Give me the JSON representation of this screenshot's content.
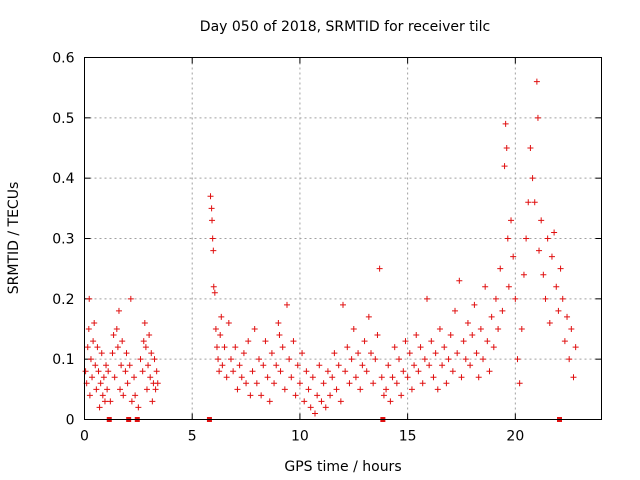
{
  "chart_data": {
    "type": "scatter",
    "title": "Day 050 of 2018, SRMTID for receiver tilc",
    "xlabel": "GPS time / hours",
    "ylabel": "SRMTID / TECUs",
    "xlim": [
      0,
      24
    ],
    "ylim": [
      0,
      0.6
    ],
    "xticks": [
      0,
      5,
      10,
      15,
      20
    ],
    "xtick_labels": [
      "0",
      "5",
      "10",
      "15",
      "20"
    ],
    "yticks": [
      0,
      0.1,
      0.2,
      0.3,
      0.4,
      0.5,
      0.6
    ],
    "ytick_labels": [
      "0",
      "0.1",
      "0.2",
      "0.3",
      "0.4",
      "0.5",
      "0.6"
    ],
    "grid": true,
    "marker": "plus",
    "color": "#e01010",
    "zero_markers_x": [
      1.15,
      2.05,
      2.45,
      5.8,
      13.85,
      22.05
    ],
    "series": [
      {
        "name": "SRMTID",
        "points": [
          [
            0.05,
            0.08
          ],
          [
            0.1,
            0.06
          ],
          [
            0.15,
            0.12
          ],
          [
            0.2,
            0.15
          ],
          [
            0.22,
            0.2
          ],
          [
            0.25,
            0.04
          ],
          [
            0.3,
            0.1
          ],
          [
            0.35,
            0.07
          ],
          [
            0.4,
            0.13
          ],
          [
            0.45,
            0.16
          ],
          [
            0.5,
            0.09
          ],
          [
            0.55,
            0.05
          ],
          [
            0.6,
            0.12
          ],
          [
            0.65,
            0.08
          ],
          [
            0.7,
            0.02
          ],
          [
            0.75,
            0.06
          ],
          [
            0.8,
            0.11
          ],
          [
            0.85,
            0.04
          ],
          [
            0.9,
            0.07
          ],
          [
            0.95,
            0.03
          ],
          [
            1.0,
            0.09
          ],
          [
            1.05,
            0.05
          ],
          [
            1.1,
            0.08
          ],
          [
            1.2,
            0.03
          ],
          [
            1.3,
            0.11
          ],
          [
            1.35,
            0.14
          ],
          [
            1.4,
            0.07
          ],
          [
            1.5,
            0.15
          ],
          [
            1.55,
            0.12
          ],
          [
            1.6,
            0.18
          ],
          [
            1.65,
            0.05
          ],
          [
            1.7,
            0.09
          ],
          [
            1.75,
            0.13
          ],
          [
            1.8,
            0.04
          ],
          [
            1.9,
            0.08
          ],
          [
            1.95,
            0.11
          ],
          [
            2.0,
            0.06
          ],
          [
            2.1,
            0.09
          ],
          [
            2.15,
            0.2
          ],
          [
            2.2,
            0.03
          ],
          [
            2.3,
            0.07
          ],
          [
            2.35,
            0.04
          ],
          [
            2.5,
            0.02
          ],
          [
            2.6,
            0.1
          ],
          [
            2.7,
            0.08
          ],
          [
            2.75,
            0.13
          ],
          [
            2.8,
            0.16
          ],
          [
            2.85,
            0.12
          ],
          [
            2.9,
            0.05
          ],
          [
            2.95,
            0.09
          ],
          [
            3.0,
            0.14
          ],
          [
            3.05,
            0.07
          ],
          [
            3.1,
            0.11
          ],
          [
            3.15,
            0.03
          ],
          [
            3.2,
            0.06
          ],
          [
            3.25,
            0.1
          ],
          [
            3.3,
            0.05
          ],
          [
            3.35,
            0.08
          ],
          [
            3.4,
            0.06
          ],
          [
            5.85,
            0.37
          ],
          [
            5.9,
            0.35
          ],
          [
            5.92,
            0.33
          ],
          [
            5.95,
            0.3
          ],
          [
            5.98,
            0.28
          ],
          [
            6.0,
            0.22
          ],
          [
            6.05,
            0.21
          ],
          [
            6.1,
            0.15
          ],
          [
            6.15,
            0.12
          ],
          [
            6.2,
            0.1
          ],
          [
            6.25,
            0.08
          ],
          [
            6.3,
            0.14
          ],
          [
            6.35,
            0.17
          ],
          [
            6.4,
            0.09
          ],
          [
            6.5,
            0.12
          ],
          [
            6.6,
            0.07
          ],
          [
            6.7,
            0.16
          ],
          [
            6.8,
            0.1
          ],
          [
            6.9,
            0.08
          ],
          [
            7.0,
            0.12
          ],
          [
            7.1,
            0.05
          ],
          [
            7.2,
            0.09
          ],
          [
            7.3,
            0.07
          ],
          [
            7.4,
            0.11
          ],
          [
            7.5,
            0.06
          ],
          [
            7.6,
            0.13
          ],
          [
            7.7,
            0.04
          ],
          [
            7.8,
            0.08
          ],
          [
            7.9,
            0.15
          ],
          [
            8.0,
            0.06
          ],
          [
            8.1,
            0.1
          ],
          [
            8.2,
            0.04
          ],
          [
            8.3,
            0.09
          ],
          [
            8.4,
            0.13
          ],
          [
            8.5,
            0.07
          ],
          [
            8.6,
            0.03
          ],
          [
            8.7,
            0.11
          ],
          [
            8.8,
            0.06
          ],
          [
            8.9,
            0.09
          ],
          [
            9.0,
            0.16
          ],
          [
            9.05,
            0.14
          ],
          [
            9.1,
            0.08
          ],
          [
            9.2,
            0.12
          ],
          [
            9.3,
            0.05
          ],
          [
            9.4,
            0.19
          ],
          [
            9.5,
            0.1
          ],
          [
            9.6,
            0.07
          ],
          [
            9.7,
            0.13
          ],
          [
            9.8,
            0.04
          ],
          [
            9.9,
            0.09
          ],
          [
            10.0,
            0.06
          ],
          [
            10.1,
            0.11
          ],
          [
            10.2,
            0.03
          ],
          [
            10.3,
            0.08
          ],
          [
            10.4,
            0.05
          ],
          [
            10.5,
            0.02
          ],
          [
            10.6,
            0.07
          ],
          [
            10.7,
            0.01
          ],
          [
            10.8,
            0.04
          ],
          [
            10.9,
            0.09
          ],
          [
            11.0,
            0.03
          ],
          [
            11.1,
            0.06
          ],
          [
            11.2,
            0.02
          ],
          [
            11.3,
            0.08
          ],
          [
            11.4,
            0.04
          ],
          [
            11.5,
            0.07
          ],
          [
            11.6,
            0.11
          ],
          [
            11.7,
            0.05
          ],
          [
            11.8,
            0.09
          ],
          [
            11.9,
            0.03
          ],
          [
            12.0,
            0.19
          ],
          [
            12.1,
            0.08
          ],
          [
            12.2,
            0.12
          ],
          [
            12.3,
            0.06
          ],
          [
            12.4,
            0.1
          ],
          [
            12.5,
            0.15
          ],
          [
            12.6,
            0.07
          ],
          [
            12.7,
            0.11
          ],
          [
            12.8,
            0.05
          ],
          [
            12.9,
            0.09
          ],
          [
            13.0,
            0.13
          ],
          [
            13.1,
            0.08
          ],
          [
            13.2,
            0.17
          ],
          [
            13.3,
            0.11
          ],
          [
            13.4,
            0.06
          ],
          [
            13.5,
            0.1
          ],
          [
            13.6,
            0.14
          ],
          [
            13.7,
            0.25
          ],
          [
            13.8,
            0.07
          ],
          [
            13.9,
            0.04
          ],
          [
            14.0,
            0.05
          ],
          [
            14.1,
            0.09
          ],
          [
            14.2,
            0.03
          ],
          [
            14.3,
            0.07
          ],
          [
            14.4,
            0.12
          ],
          [
            14.5,
            0.06
          ],
          [
            14.6,
            0.1
          ],
          [
            14.7,
            0.04
          ],
          [
            14.8,
            0.08
          ],
          [
            14.9,
            0.13
          ],
          [
            15.0,
            0.07
          ],
          [
            15.1,
            0.11
          ],
          [
            15.2,
            0.05
          ],
          [
            15.3,
            0.09
          ],
          [
            15.4,
            0.14
          ],
          [
            15.5,
            0.08
          ],
          [
            15.6,
            0.12
          ],
          [
            15.7,
            0.06
          ],
          [
            15.8,
            0.1
          ],
          [
            15.9,
            0.2
          ],
          [
            16.0,
            0.09
          ],
          [
            16.1,
            0.13
          ],
          [
            16.2,
            0.07
          ],
          [
            16.3,
            0.11
          ],
          [
            16.4,
            0.05
          ],
          [
            16.5,
            0.15
          ],
          [
            16.6,
            0.09
          ],
          [
            16.7,
            0.12
          ],
          [
            16.8,
            0.06
          ],
          [
            16.9,
            0.1
          ],
          [
            17.0,
            0.14
          ],
          [
            17.1,
            0.08
          ],
          [
            17.2,
            0.18
          ],
          [
            17.3,
            0.11
          ],
          [
            17.4,
            0.23
          ],
          [
            17.5,
            0.07
          ],
          [
            17.6,
            0.13
          ],
          [
            17.7,
            0.1
          ],
          [
            17.8,
            0.16
          ],
          [
            17.9,
            0.09
          ],
          [
            18.0,
            0.14
          ],
          [
            18.1,
            0.19
          ],
          [
            18.2,
            0.11
          ],
          [
            18.3,
            0.07
          ],
          [
            18.4,
            0.15
          ],
          [
            18.5,
            0.1
          ],
          [
            18.6,
            0.22
          ],
          [
            18.7,
            0.13
          ],
          [
            18.8,
            0.08
          ],
          [
            18.9,
            0.17
          ],
          [
            19.0,
            0.12
          ],
          [
            19.1,
            0.2
          ],
          [
            19.2,
            0.15
          ],
          [
            19.3,
            0.25
          ],
          [
            19.4,
            0.18
          ],
          [
            19.5,
            0.42
          ],
          [
            19.55,
            0.49
          ],
          [
            19.6,
            0.45
          ],
          [
            19.65,
            0.3
          ],
          [
            19.7,
            0.22
          ],
          [
            19.8,
            0.33
          ],
          [
            19.9,
            0.27
          ],
          [
            20.0,
            0.2
          ],
          [
            20.1,
            0.1
          ],
          [
            20.2,
            0.06
          ],
          [
            20.3,
            0.15
          ],
          [
            20.4,
            0.24
          ],
          [
            20.5,
            0.3
          ],
          [
            20.6,
            0.36
          ],
          [
            20.7,
            0.45
          ],
          [
            20.8,
            0.4
          ],
          [
            20.9,
            0.36
          ],
          [
            21.0,
            0.56
          ],
          [
            21.05,
            0.5
          ],
          [
            21.1,
            0.28
          ],
          [
            21.2,
            0.33
          ],
          [
            21.3,
            0.24
          ],
          [
            21.4,
            0.2
          ],
          [
            21.5,
            0.3
          ],
          [
            21.6,
            0.16
          ],
          [
            21.7,
            0.27
          ],
          [
            21.8,
            0.31
          ],
          [
            21.9,
            0.22
          ],
          [
            22.0,
            0.18
          ],
          [
            22.1,
            0.25
          ],
          [
            22.2,
            0.2
          ],
          [
            22.3,
            0.13
          ],
          [
            22.4,
            0.17
          ],
          [
            22.5,
            0.1
          ],
          [
            22.6,
            0.15
          ],
          [
            22.7,
            0.07
          ],
          [
            22.8,
            0.12
          ]
        ]
      }
    ]
  }
}
